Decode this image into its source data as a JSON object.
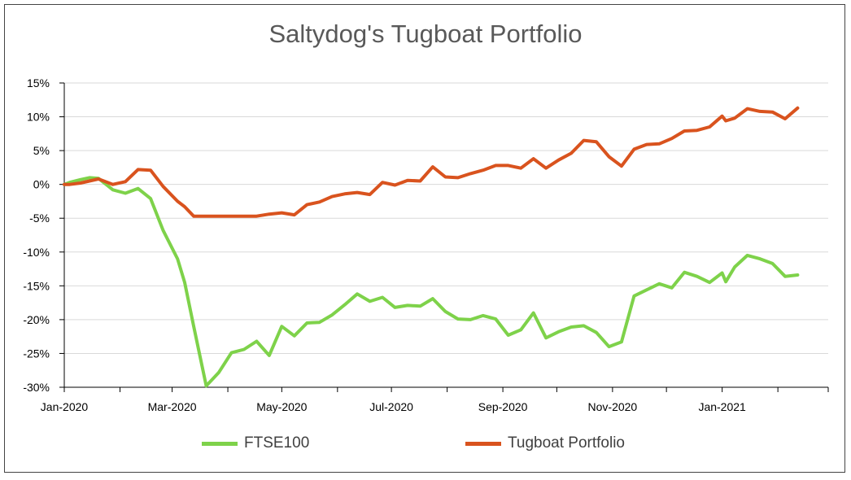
{
  "chart_data": {
    "type": "line",
    "title": "Saltydog's Tugboat Portfolio",
    "xlabel": "",
    "ylabel": "",
    "ylim": [
      -30,
      15
    ],
    "yticks": [
      "15%",
      "10%",
      "5%",
      "0%",
      "-5%",
      "-10%",
      "-15%",
      "-20%",
      "-25%",
      "-30%"
    ],
    "xlim": [
      "2020-01-01",
      "2021-03-01"
    ],
    "xticks": [
      {
        "date": "2020-01-01",
        "label": "Jan-2020"
      },
      {
        "date": "2020-03-01",
        "label": "Mar-2020"
      },
      {
        "date": "2020-05-01",
        "label": "May-2020"
      },
      {
        "date": "2020-07-01",
        "label": "Jul-2020"
      },
      {
        "date": "2020-09-01",
        "label": "Sep-2020"
      },
      {
        "date": "2020-11-01",
        "label": "Nov-2020"
      },
      {
        "date": "2021-01-01",
        "label": "Jan-2021"
      }
    ],
    "grid": true,
    "legend": "bottom",
    "series": [
      {
        "name": "FTSE100",
        "color": "#7ED24A",
        "points": [
          [
            "2020-01-01",
            0.0
          ],
          [
            "2020-01-04",
            0.3
          ],
          [
            "2020-01-10",
            0.7
          ],
          [
            "2020-01-15",
            1.0
          ],
          [
            "2020-01-20",
            0.9
          ],
          [
            "2020-01-28",
            -0.8
          ],
          [
            "2020-02-04",
            -1.3
          ],
          [
            "2020-02-11",
            -0.6
          ],
          [
            "2020-02-18",
            -2.1
          ],
          [
            "2020-02-25",
            -6.8
          ],
          [
            "2020-03-04",
            -11.0
          ],
          [
            "2020-03-08",
            -14.5
          ],
          [
            "2020-03-13",
            -21.0
          ],
          [
            "2020-03-20",
            -29.8
          ],
          [
            "2020-03-27",
            -27.8
          ],
          [
            "2020-04-03",
            -24.9
          ],
          [
            "2020-04-10",
            -24.4
          ],
          [
            "2020-04-17",
            -23.2
          ],
          [
            "2020-04-24",
            -25.3
          ],
          [
            "2020-05-01",
            -21.0
          ],
          [
            "2020-05-08",
            -22.4
          ],
          [
            "2020-05-15",
            -20.5
          ],
          [
            "2020-05-22",
            -20.4
          ],
          [
            "2020-05-29",
            -19.3
          ],
          [
            "2020-06-05",
            -17.8
          ],
          [
            "2020-06-12",
            -16.2
          ],
          [
            "2020-06-19",
            -17.3
          ],
          [
            "2020-06-26",
            -16.7
          ],
          [
            "2020-07-03",
            -18.2
          ],
          [
            "2020-07-10",
            -17.9
          ],
          [
            "2020-07-17",
            -18.0
          ],
          [
            "2020-07-24",
            -16.9
          ],
          [
            "2020-07-31",
            -18.8
          ],
          [
            "2020-08-07",
            -19.9
          ],
          [
            "2020-08-14",
            -20.0
          ],
          [
            "2020-08-21",
            -19.4
          ],
          [
            "2020-08-28",
            -19.9
          ],
          [
            "2020-09-04",
            -22.3
          ],
          [
            "2020-09-11",
            -21.5
          ],
          [
            "2020-09-18",
            -19.0
          ],
          [
            "2020-09-25",
            -22.7
          ],
          [
            "2020-10-02",
            -21.8
          ],
          [
            "2020-10-09",
            -21.1
          ],
          [
            "2020-10-16",
            -20.9
          ],
          [
            "2020-10-23",
            -21.9
          ],
          [
            "2020-10-30",
            -24.0
          ],
          [
            "2020-11-06",
            -23.3
          ],
          [
            "2020-11-13",
            -16.5
          ],
          [
            "2020-11-20",
            -15.6
          ],
          [
            "2020-11-27",
            -14.7
          ],
          [
            "2020-12-04",
            -15.3
          ],
          [
            "2020-12-11",
            -13.0
          ],
          [
            "2020-12-18",
            -13.6
          ],
          [
            "2020-12-25",
            -14.5
          ],
          [
            "2021-01-01",
            -13.1
          ],
          [
            "2021-01-03",
            -14.4
          ],
          [
            "2021-01-08",
            -12.2
          ],
          [
            "2021-01-15",
            -10.5
          ],
          [
            "2021-01-22",
            -11.0
          ],
          [
            "2021-01-29",
            -11.7
          ],
          [
            "2021-02-05",
            -13.6
          ],
          [
            "2021-02-12",
            -13.4
          ]
        ]
      },
      {
        "name": "Tugboat Portfolio",
        "color": "#D9531E",
        "points": [
          [
            "2020-01-01",
            0.0
          ],
          [
            "2020-01-04",
            0.0
          ],
          [
            "2020-01-10",
            0.2
          ],
          [
            "2020-01-15",
            0.5
          ],
          [
            "2020-01-20",
            0.8
          ],
          [
            "2020-01-28",
            0.0
          ],
          [
            "2020-02-04",
            0.4
          ],
          [
            "2020-02-11",
            2.2
          ],
          [
            "2020-02-18",
            2.1
          ],
          [
            "2020-02-25",
            -0.3
          ],
          [
            "2020-03-04",
            -2.5
          ],
          [
            "2020-03-08",
            -3.3
          ],
          [
            "2020-03-13",
            -4.7
          ],
          [
            "2020-03-20",
            -4.7
          ],
          [
            "2020-03-27",
            -4.7
          ],
          [
            "2020-04-03",
            -4.7
          ],
          [
            "2020-04-10",
            -4.7
          ],
          [
            "2020-04-17",
            -4.7
          ],
          [
            "2020-04-24",
            -4.4
          ],
          [
            "2020-05-01",
            -4.2
          ],
          [
            "2020-05-08",
            -4.5
          ],
          [
            "2020-05-15",
            -3.0
          ],
          [
            "2020-05-22",
            -2.6
          ],
          [
            "2020-05-29",
            -1.8
          ],
          [
            "2020-06-05",
            -1.4
          ],
          [
            "2020-06-12",
            -1.2
          ],
          [
            "2020-06-19",
            -1.5
          ],
          [
            "2020-06-26",
            0.3
          ],
          [
            "2020-07-03",
            -0.1
          ],
          [
            "2020-07-10",
            0.6
          ],
          [
            "2020-07-17",
            0.5
          ],
          [
            "2020-07-24",
            2.6
          ],
          [
            "2020-07-31",
            1.1
          ],
          [
            "2020-08-07",
            1.0
          ],
          [
            "2020-08-14",
            1.6
          ],
          [
            "2020-08-21",
            2.1
          ],
          [
            "2020-08-28",
            2.8
          ],
          [
            "2020-09-04",
            2.8
          ],
          [
            "2020-09-11",
            2.4
          ],
          [
            "2020-09-18",
            3.8
          ],
          [
            "2020-09-25",
            2.4
          ],
          [
            "2020-10-02",
            3.6
          ],
          [
            "2020-10-09",
            4.6
          ],
          [
            "2020-10-16",
            6.5
          ],
          [
            "2020-10-23",
            6.3
          ],
          [
            "2020-10-30",
            4.1
          ],
          [
            "2020-11-06",
            2.7
          ],
          [
            "2020-11-13",
            5.2
          ],
          [
            "2020-11-20",
            5.9
          ],
          [
            "2020-11-27",
            6.0
          ],
          [
            "2020-12-04",
            6.8
          ],
          [
            "2020-12-11",
            7.9
          ],
          [
            "2020-12-18",
            8.0
          ],
          [
            "2020-12-25",
            8.5
          ],
          [
            "2021-01-01",
            10.1
          ],
          [
            "2021-01-03",
            9.4
          ],
          [
            "2021-01-08",
            9.8
          ],
          [
            "2021-01-15",
            11.2
          ],
          [
            "2021-01-22",
            10.8
          ],
          [
            "2021-01-29",
            10.7
          ],
          [
            "2021-02-05",
            9.7
          ],
          [
            "2021-02-12",
            11.3
          ]
        ]
      }
    ]
  }
}
